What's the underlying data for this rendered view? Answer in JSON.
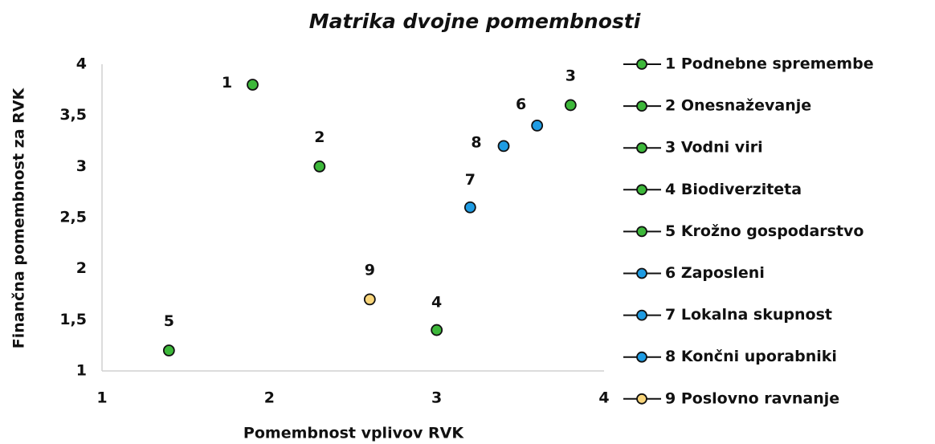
{
  "chart_data": {
    "type": "scatter",
    "title": "Matrika dvojne pomembnosti",
    "xlabel": "Pomembnost vplivov RVK",
    "ylabel": "Finančna pomembnost za RVK",
    "xlim": [
      1,
      4
    ],
    "xticks": [
      1,
      2,
      3,
      4
    ],
    "ylim": [
      1,
      4
    ],
    "yticks": [
      1,
      {
        "value": 1.5,
        "label": "1,5"
      },
      2,
      {
        "value": 2.5,
        "label": "2,5"
      },
      3,
      {
        "value": 3.5,
        "label": "3,5"
      },
      4
    ],
    "grid": false,
    "legend": "right",
    "series": [
      {
        "name": "1 Podnebne spremembe",
        "label": "1",
        "color": "#3db83a",
        "x": [
          1.9
        ],
        "values": [
          3.8
        ]
      },
      {
        "name": "2 Onesnaževanje",
        "label": "2",
        "color": "#3db83a",
        "x": [
          2.3
        ],
        "values": [
          3.0
        ]
      },
      {
        "name": "3 Vodni viri",
        "label": "3",
        "color": "#3db83a",
        "x": [
          3.8
        ],
        "values": [
          3.6
        ]
      },
      {
        "name": "4 Biodiverziteta",
        "label": "4",
        "color": "#3db83a",
        "x": [
          3.0
        ],
        "values": [
          1.4
        ]
      },
      {
        "name": "5 Krožno gospodarstvo",
        "label": "5",
        "color": "#3db83a",
        "x": [
          1.4
        ],
        "values": [
          1.2
        ]
      },
      {
        "name": "6 Zaposleni",
        "label": "6",
        "color": "#1f9ce3",
        "x": [
          3.6
        ],
        "values": [
          3.4
        ]
      },
      {
        "name": "7 Lokalna skupnost",
        "label": "7",
        "color": "#1f9ce3",
        "x": [
          3.2
        ],
        "values": [
          2.6
        ]
      },
      {
        "name": "8 Končni uporabniki",
        "label": "8",
        "color": "#1f9ce3",
        "x": [
          3.4
        ],
        "values": [
          3.2
        ]
      },
      {
        "name": "9 Poslovno ravnanje",
        "label": "9",
        "color": "#f9d57a",
        "x": [
          2.6
        ],
        "values": [
          1.7
        ]
      }
    ]
  }
}
